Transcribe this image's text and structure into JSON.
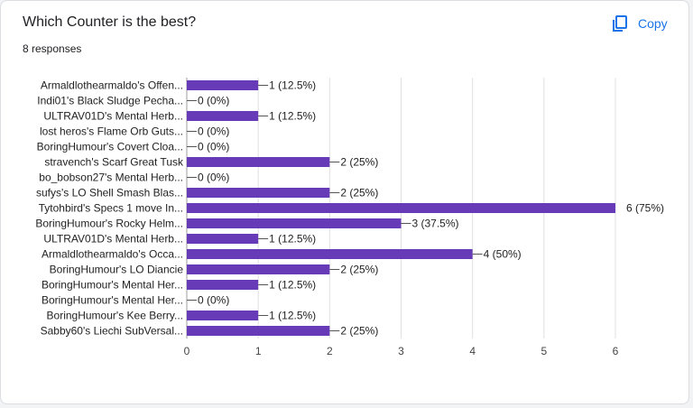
{
  "header": {
    "title": "Which Counter is the best?",
    "responses": "8 responses",
    "copy_label": "Copy",
    "copy_icon": "copy-icon"
  },
  "colors": {
    "bar": "#673ab7",
    "accent": "#1a73e8"
  },
  "chart_data": {
    "type": "bar",
    "orientation": "horizontal",
    "title": "Which Counter is the best?",
    "categories": [
      "Armaldlothearmaldo's Offen...",
      "Indi01's Black Sludge Pecha...",
      "ULTRAV01D's Mental Herb...",
      "lost heros's Flame Orb Guts...",
      "BoringHumour's Covert Cloa...",
      "stravench's Scarf Great Tusk",
      "bo_bobson27's Mental Herb...",
      "sufys's LO Shell Smash Blas...",
      "Tytohbird's Specs 1 move In...",
      "BoringHumour's Rocky Helm...",
      "ULTRAV01D's Mental Herb...",
      "Armaldlothearmaldo's Occa...",
      "BoringHumour's LO Diancie",
      "BoringHumour's Mental Her...",
      "BoringHumour's Mental Her...",
      "BoringHumour's Kee Berry...",
      "Sabby60's Liechi SubVersal..."
    ],
    "values": [
      1,
      0,
      1,
      0,
      0,
      2,
      0,
      2,
      6,
      3,
      1,
      4,
      2,
      1,
      0,
      1,
      2
    ],
    "value_labels": [
      "1 (12.5%)",
      "0 (0%)",
      "1 (12.5%)",
      "0 (0%)",
      "0 (0%)",
      "2 (25%)",
      "0 (0%)",
      "2 (25%)",
      "6 (75%)",
      "3 (37.5%)",
      "1 (12.5%)",
      "4 (50%)",
      "2 (25%)",
      "1 (12.5%)",
      "0 (0%)",
      "1 (12.5%)",
      "2 (25%)"
    ],
    "xlim": [
      0,
      6
    ],
    "xticks": [
      "0",
      "1",
      "2",
      "3",
      "4",
      "5",
      "6"
    ],
    "grid": true
  }
}
